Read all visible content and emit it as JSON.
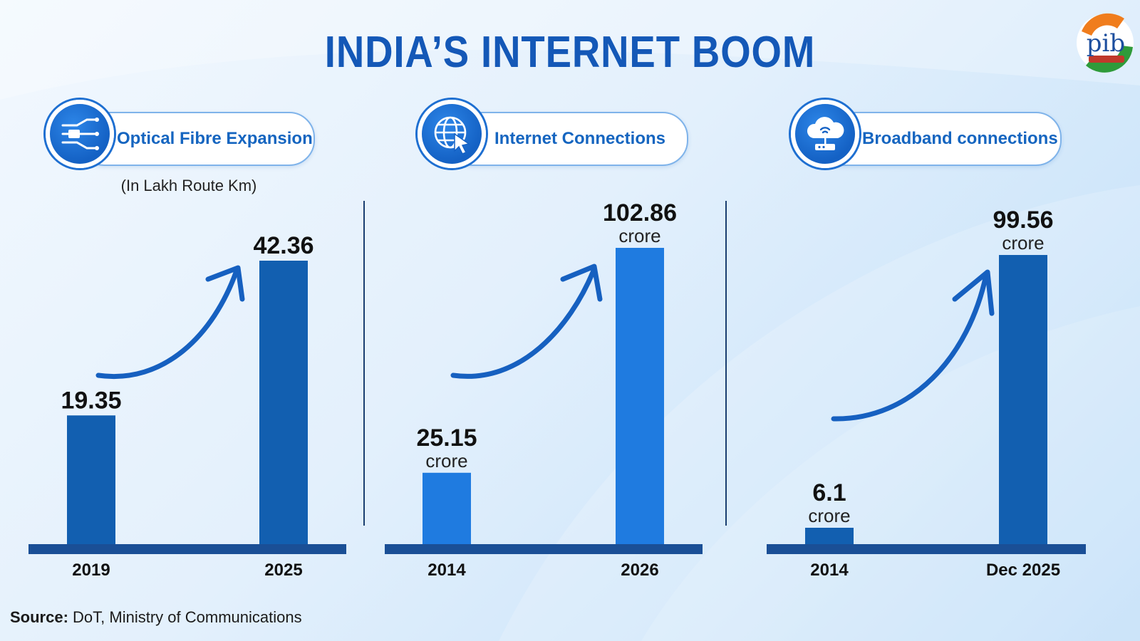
{
  "title": "INDIA’S INTERNET BOOM",
  "logo": {
    "text": "pib",
    "icon": "pib-logo"
  },
  "panels": [
    {
      "heading": "Optical Fibre Expansion",
      "icon": "optical-fibre-icon",
      "subnote": "(In Lakh Route Km)"
    },
    {
      "heading": "Internet Connections",
      "icon": "globe-cursor-icon"
    },
    {
      "heading": "Broadband connections",
      "icon": "cloud-router-icon"
    }
  ],
  "source": {
    "label": "Source:",
    "text": "DoT, Ministry of Communications"
  },
  "colors": {
    "title": "#1458b7",
    "bar_dark": "#125fb0",
    "bar_light": "#1f7be0",
    "baseline": "#1a4f96",
    "arrow": "#1660c0"
  },
  "chart_data": [
    {
      "type": "bar",
      "title": "Optical Fibre Expansion",
      "unit": "(In Lakh Route Km)",
      "categories": [
        "2019",
        "2025"
      ],
      "values": [
        19.35,
        42.36
      ],
      "value_labels": [
        "19.35",
        "42.36"
      ],
      "value_suffix": ""
    },
    {
      "type": "bar",
      "title": "Internet Connections",
      "categories": [
        "2014",
        "2026"
      ],
      "values": [
        25.15,
        102.86
      ],
      "value_labels": [
        "25.15",
        "102.86"
      ],
      "value_suffix": "crore"
    },
    {
      "type": "bar",
      "title": "Broadband connections",
      "categories": [
        "2014",
        "Dec 2025"
      ],
      "values": [
        6.1,
        99.56
      ],
      "value_labels": [
        "6.1",
        "99.56"
      ],
      "value_suffix": "crore"
    }
  ]
}
